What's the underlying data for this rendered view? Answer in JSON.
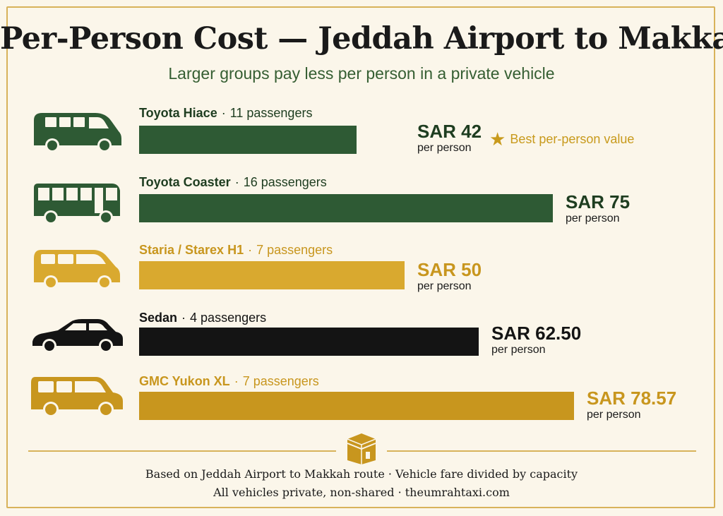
{
  "title": "Per-Person Cost — Jeddah Airport to Makkah",
  "subtitle": "Larger groups pay less per person in a private vehicle",
  "chart_data": {
    "type": "bar",
    "orientation": "horizontal",
    "categories": [
      "Toyota Hiace",
      "Toyota Coaster",
      "Staria / Starex H1",
      "Sedan",
      "GMC Yukon XL"
    ],
    "passengers": [
      "11 passengers",
      "16 passengers",
      "7 passengers",
      "4 passengers",
      "7 passengers"
    ],
    "values": [
      42,
      75,
      50,
      62.5,
      78.57
    ],
    "value_labels": [
      "SAR 42",
      "SAR 75",
      "SAR 50",
      "SAR 62.50",
      "SAR 78.57"
    ],
    "unit_label": "per person",
    "colors": [
      "#2e5a34",
      "#2e5a34",
      "#d9a92f",
      "#141414",
      "#c8961e"
    ],
    "icons": [
      "van-icon",
      "minibus-icon",
      "minivan-icon",
      "sedan-icon",
      "suv-icon"
    ],
    "annotation": {
      "category": "Toyota Hiace",
      "text": "Best per-person value",
      "icon": "star-icon"
    }
  },
  "footer": {
    "line1": "Based on Jeddah Airport to Makkah route · Vehicle fare divided by capacity",
    "line2": "All vehicles private, non-shared · theumrahtaxi.com"
  },
  "colors": {
    "border": "#d8b25a",
    "green": "#2e5a34",
    "gold": "#c89a1c"
  }
}
